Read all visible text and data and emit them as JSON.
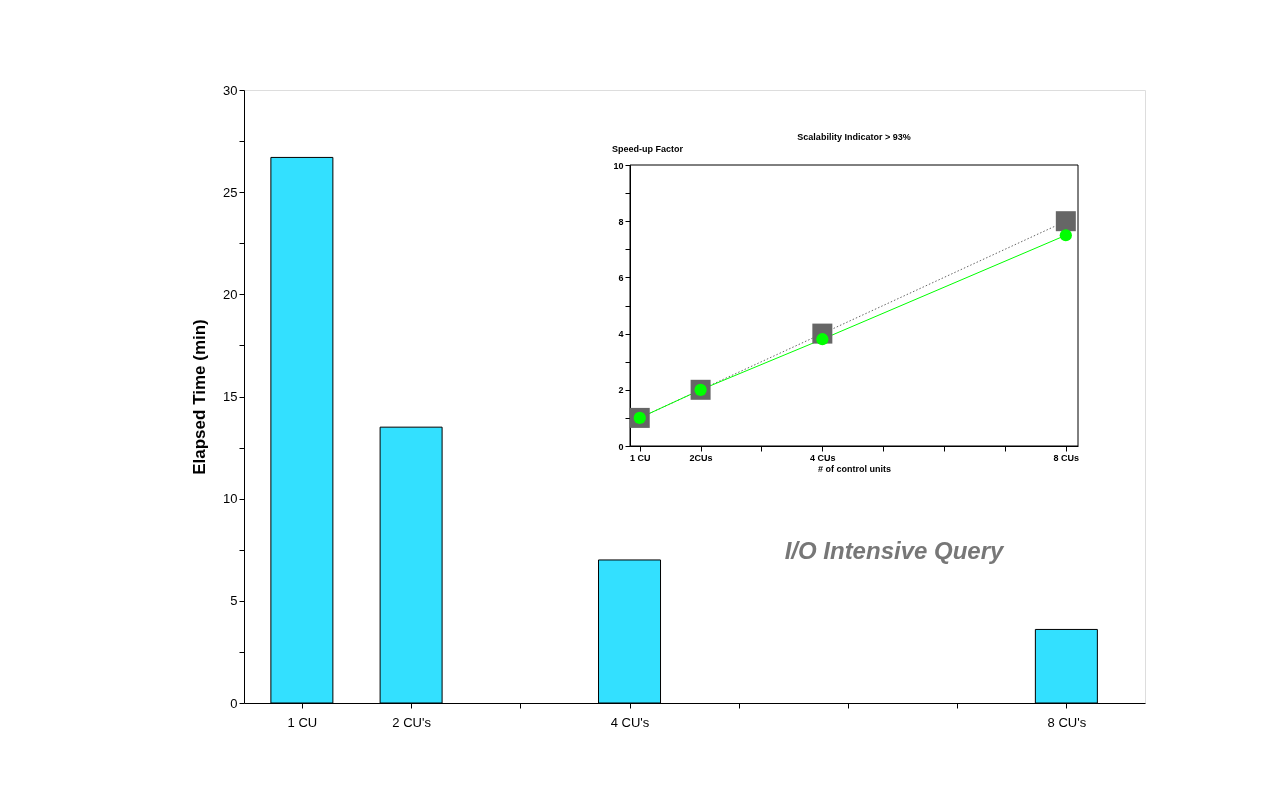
{
  "chart_data": [
    {
      "type": "bar",
      "ylabel": "Elapsed Time (min)",
      "x": [
        1,
        2,
        4,
        8
      ],
      "values": [
        26.7,
        13.5,
        7.0,
        3.6
      ],
      "color": "#33e0ff",
      "xlim": [
        0.47,
        8.72
      ],
      "xticks": [
        {
          "value": 1,
          "label": "1 CU"
        },
        {
          "value": 2,
          "label": "2 CU's"
        },
        {
          "value": 3,
          "label": null
        },
        {
          "value": 4,
          "label": "4 CU's"
        },
        {
          "value": 5,
          "label": null
        },
        {
          "value": 6,
          "label": null
        },
        {
          "value": 7,
          "label": null
        },
        {
          "value": 8,
          "label": "8 CU's"
        }
      ],
      "ylim": [
        0,
        30
      ],
      "yticks": [
        0,
        {
          "value": 2.5,
          "label": null
        },
        5,
        {
          "value": 7.5,
          "label": null
        },
        10,
        {
          "value": 12.5,
          "label": null
        },
        15,
        {
          "value": 17.5,
          "label": null
        },
        20,
        {
          "value": 22.5,
          "label": null
        },
        25,
        {
          "value": 27.5,
          "label": null
        },
        30
      ],
      "annotations": [
        "I/O Intensive Query"
      ]
    },
    {
      "type": "line",
      "title": "Scalability Indicator > 93%",
      "xlabel": "# of control units",
      "ylabel": "Speed-up Factor",
      "x": [
        1,
        2,
        4,
        8
      ],
      "series": [
        {
          "color": "#666666",
          "values": [
            1,
            2,
            4,
            8
          ],
          "marker": "square",
          "line_style": "dotted"
        },
        {
          "color": "#00ff00",
          "values": [
            1,
            2,
            3.8,
            7.5
          ],
          "marker": "circle",
          "line_style": "solid"
        }
      ],
      "xlim": [
        0.84,
        8.2
      ],
      "xticks": [
        {
          "value": 1,
          "label": "1 CU"
        },
        {
          "value": 2,
          "label": "2CUs"
        },
        {
          "value": 3,
          "label": null
        },
        {
          "value": 4,
          "label": "4 CUs"
        },
        {
          "value": 5,
          "label": null
        },
        {
          "value": 6,
          "label": null
        },
        {
          "value": 7,
          "label": null
        },
        {
          "value": 8,
          "label": "8 CUs"
        }
      ],
      "ylim": [
        0,
        10
      ],
      "yticks": [
        0,
        {
          "value": 1,
          "label": null
        },
        2,
        {
          "value": 3,
          "label": null
        },
        4,
        {
          "value": 5,
          "label": null
        },
        6,
        {
          "value": 7,
          "label": null
        },
        8,
        {
          "value": 9,
          "label": null
        },
        10
      ]
    }
  ]
}
